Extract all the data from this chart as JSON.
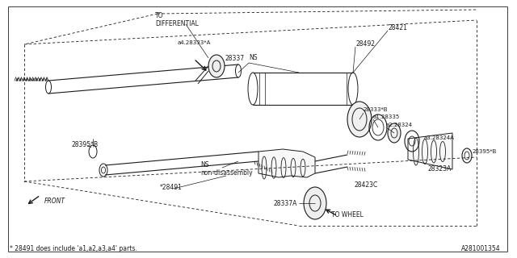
{
  "bg_color": "#ffffff",
  "line_color": "#1a1a1a",
  "footnote": "* 28491 does include 'a1,a2,a3,a4' parts.",
  "diagram_id": "A281001354",
  "labels": {
    "to_differential": "TO\nDIFFERENTIAL",
    "to_wheel": "TO WHEEL",
    "front": "FRONT",
    "ns_nondisassembly": "NS\nnon-disassembly",
    "ns_upper": "NS"
  },
  "parts": {
    "28337": "28337",
    "28421": "28421",
    "28492": "28492",
    "28333B": "28333*B",
    "a128335": "a1.28335",
    "a228324": "a2.28324",
    "a428333A": "a4.28333*A",
    "28323A": "28323A",
    "28423C": "28423C",
    "a328324A": "a3.28324A",
    "28395B_right": "28395*B",
    "28395B_left": "28395*B",
    "28491": "*28491",
    "28337A": "28337A"
  }
}
